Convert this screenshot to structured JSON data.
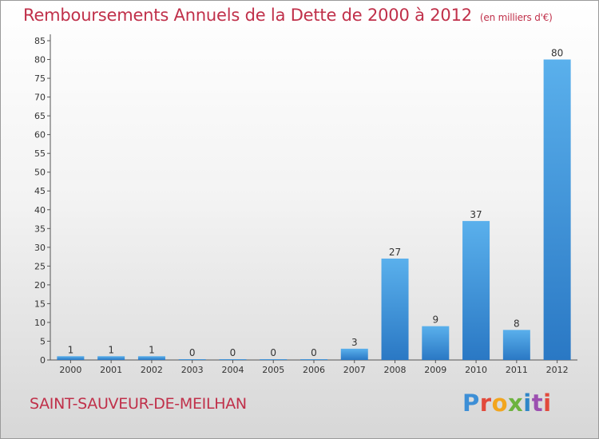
{
  "header": {
    "title": "Remboursements Annuels de la Dette de 2000 à 2012",
    "unit": "(en milliers d'€)"
  },
  "footer": {
    "city": "SAINT-SAUVEUR-DE-MEILHAN",
    "logo_letters": [
      "P",
      "r",
      "o",
      "x",
      "i",
      "t",
      "i"
    ],
    "logo_colors": [
      "#3d8fd6",
      "#e24a3b",
      "#f2a51e",
      "#6db33f",
      "#2e86c8",
      "#9c4fb0",
      "#e24a3b"
    ]
  },
  "colors": {
    "bar_light": "#5ab0ec",
    "bar_dark": "#2a78c4",
    "axis": "#555555",
    "text": "#333333"
  },
  "chart_data": {
    "type": "bar",
    "categories": [
      "2000",
      "2001",
      "2002",
      "2003",
      "2004",
      "2005",
      "2006",
      "2007",
      "2008",
      "2009",
      "2010",
      "2011",
      "2012"
    ],
    "values": [
      1,
      1,
      1,
      0,
      0,
      0,
      0,
      3,
      27,
      9,
      37,
      8,
      80
    ],
    "value_labels": [
      "1",
      "1",
      "1",
      "0",
      "0",
      "0",
      "0",
      "3",
      "27",
      "9",
      "37",
      "8",
      "80"
    ],
    "yticks": [
      "0",
      "5",
      "10",
      "15",
      "20",
      "25",
      "30",
      "35",
      "40",
      "45",
      "50",
      "55",
      "60",
      "65",
      "70",
      "75",
      "80",
      "85"
    ],
    "ylim": [
      0,
      85
    ],
    "title": "Remboursements Annuels de la Dette de 2000 à 2012",
    "xlabel": "",
    "ylabel": "",
    "grid": false,
    "legend": "none"
  }
}
